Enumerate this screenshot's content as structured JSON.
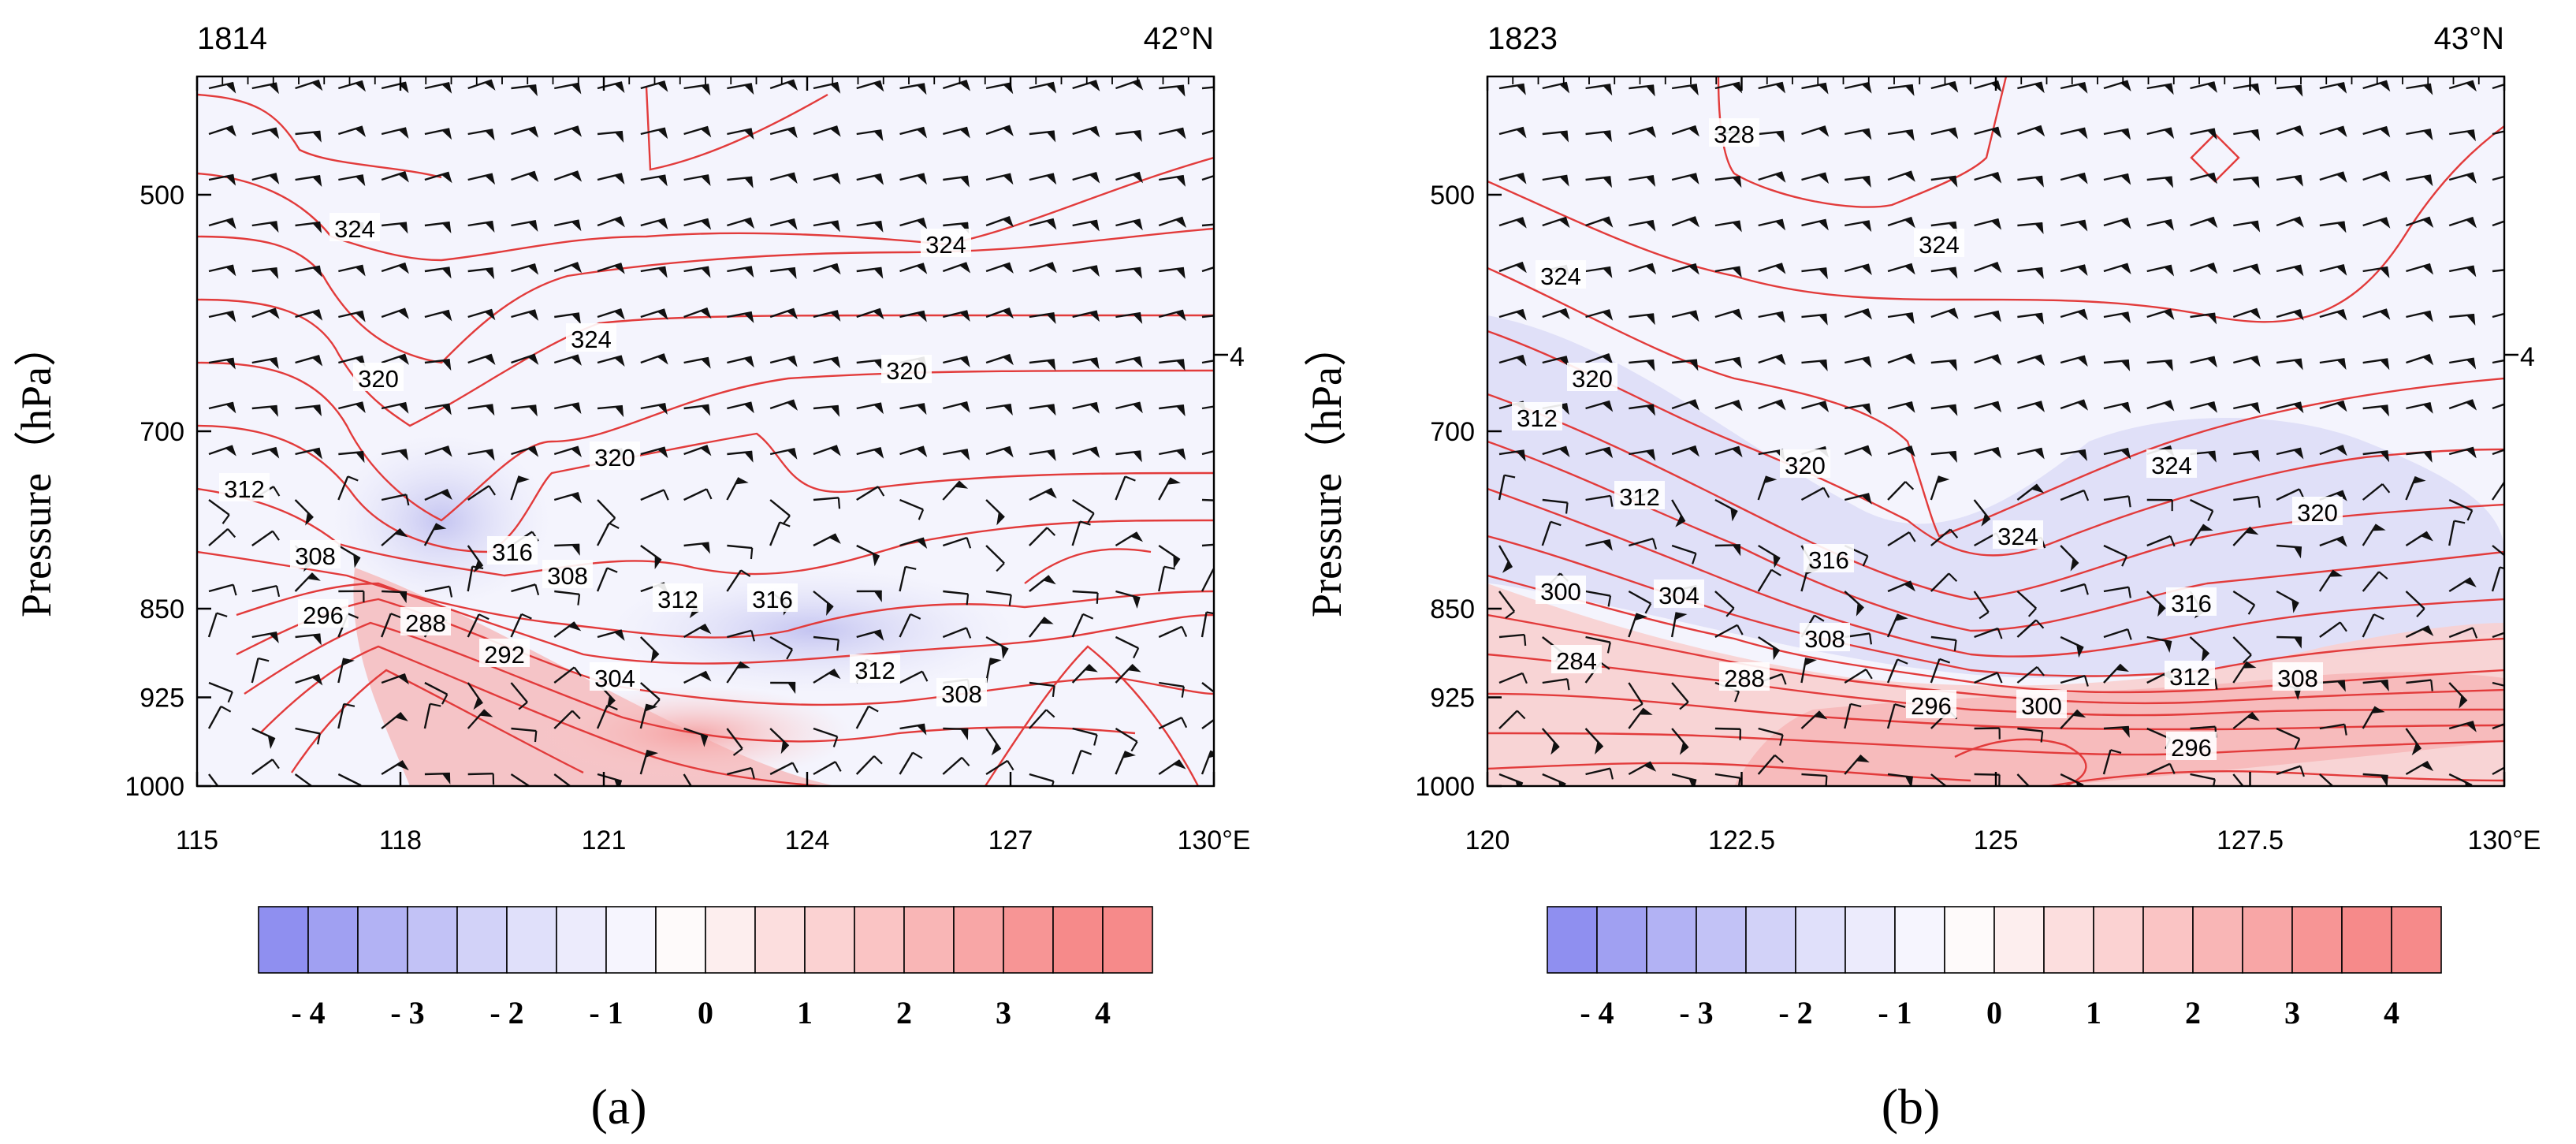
{
  "chart_data": [
    {
      "type": "heatmap",
      "panel_label": "(a)",
      "title_left": "1814",
      "title_right": "42°N",
      "ylabel": "Pressure（hPa）",
      "xlim": [
        115,
        130
      ],
      "x_ticks": [
        115,
        118,
        121,
        124,
        127,
        130
      ],
      "x_tick_labels": [
        "115",
        "118",
        "121",
        "124",
        "127",
        "130°E"
      ],
      "ylim": [
        1000,
        400
      ],
      "y_ticks": [
        500,
        700,
        850,
        925,
        1000
      ],
      "y_tick_labels": [
        "500",
        "700",
        "850",
        "925",
        "1000"
      ],
      "right_axis_label": "4",
      "contour_levels": [
        284,
        288,
        292,
        296,
        300,
        304,
        308,
        312,
        316,
        320,
        324,
        328
      ],
      "contour_labels": [
        "324",
        "324",
        "324",
        "320",
        "320",
        "320",
        "312",
        "316",
        "308",
        "308",
        "312",
        "316",
        "296",
        "288",
        "292",
        "304",
        "312",
        "308"
      ],
      "colorbar_labels": [
        "- 4",
        "- 3",
        "- 2",
        "- 1",
        "0",
        "1",
        "2",
        "3",
        "4"
      ],
      "colorbar_range": [
        -4,
        4
      ]
    },
    {
      "type": "heatmap",
      "panel_label": "(b)",
      "title_left": "1823",
      "title_right": "43°N",
      "ylabel": "Pressure（hPa）",
      "xlim": [
        120,
        130
      ],
      "x_ticks": [
        120,
        122.5,
        125,
        127.5,
        130
      ],
      "x_tick_labels": [
        "120",
        "122.5",
        "125",
        "127.5",
        "130°E"
      ],
      "ylim": [
        1000,
        400
      ],
      "y_ticks": [
        500,
        700,
        850,
        925,
        1000
      ],
      "y_tick_labels": [
        "500",
        "700",
        "850",
        "925",
        "1000"
      ],
      "right_axis_label": "4",
      "contour_levels": [
        284,
        288,
        292,
        296,
        300,
        304,
        308,
        312,
        316,
        320,
        324,
        328
      ],
      "contour_labels": [
        "328",
        "324",
        "324",
        "320",
        "312",
        "312",
        "320",
        "324",
        "324",
        "320",
        "316",
        "300",
        "304",
        "308",
        "316",
        "284",
        "288",
        "296",
        "300",
        "312",
        "308",
        "296"
      ],
      "colorbar_labels": [
        "- 4",
        "- 3",
        "- 2",
        "- 1",
        "0",
        "1",
        "2",
        "3",
        "4"
      ],
      "colorbar_range": [
        -4,
        4
      ]
    }
  ]
}
